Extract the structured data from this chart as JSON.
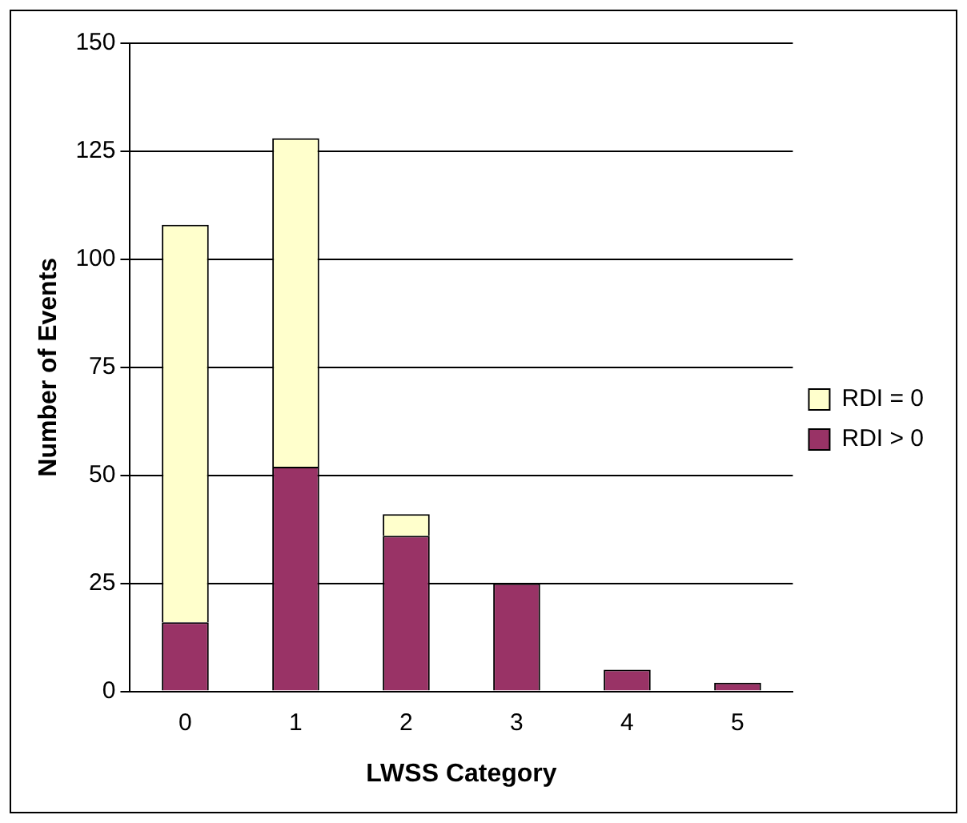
{
  "chart_data": {
    "type": "bar",
    "xlabel": "LWSS Category",
    "ylabel": "Number of Events",
    "categories": [
      "0",
      "1",
      "2",
      "3",
      "4",
      "5"
    ],
    "series": [
      {
        "name": "RDI > 0",
        "color": "#993366",
        "values": [
          16,
          52,
          36,
          25,
          5,
          2
        ]
      },
      {
        "name": "RDI = 0",
        "color": "#ffffcc",
        "values": [
          92,
          76,
          5,
          0,
          0,
          0
        ]
      }
    ],
    "stacked": true,
    "ylim": [
      0,
      150
    ],
    "yticks": [
      0,
      25,
      50,
      75,
      100,
      125,
      150
    ],
    "grid": "y",
    "legend": "right"
  }
}
